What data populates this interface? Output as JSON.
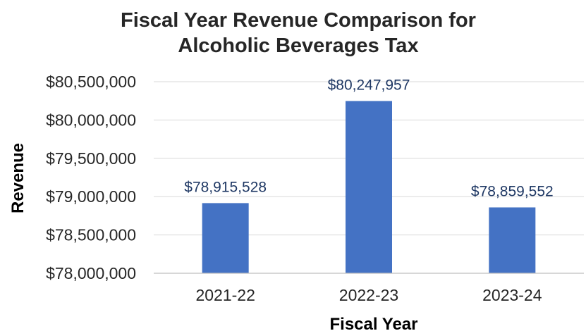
{
  "chart_data": {
    "type": "bar",
    "title_lines": [
      "Fiscal Year Revenue Comparison for",
      "Alcoholic Beverages Tax"
    ],
    "xlabel": "Fiscal Year",
    "ylabel": "Revenue",
    "categories": [
      "2021-22",
      "2022-23",
      "2023-24"
    ],
    "values": [
      78915528,
      80247957,
      78859552
    ],
    "data_labels": [
      "$78,915,528",
      "$80,247,957",
      "$78,859,552"
    ],
    "ylim": [
      78000000,
      80500000
    ],
    "y_ticks": [
      78000000,
      78500000,
      79000000,
      79500000,
      80000000,
      80500000
    ],
    "y_tick_labels": [
      "$78,000,000",
      "$78,500,000",
      "$79,000,000",
      "$79,500,000",
      "$80,000,000",
      "$80,500,000"
    ],
    "grid": true,
    "legend": "none",
    "colors": {
      "bar": "#4472c4",
      "data_label": "#1f3864",
      "grid": "#d9d9d9",
      "axis": "#bfbfbf"
    }
  }
}
